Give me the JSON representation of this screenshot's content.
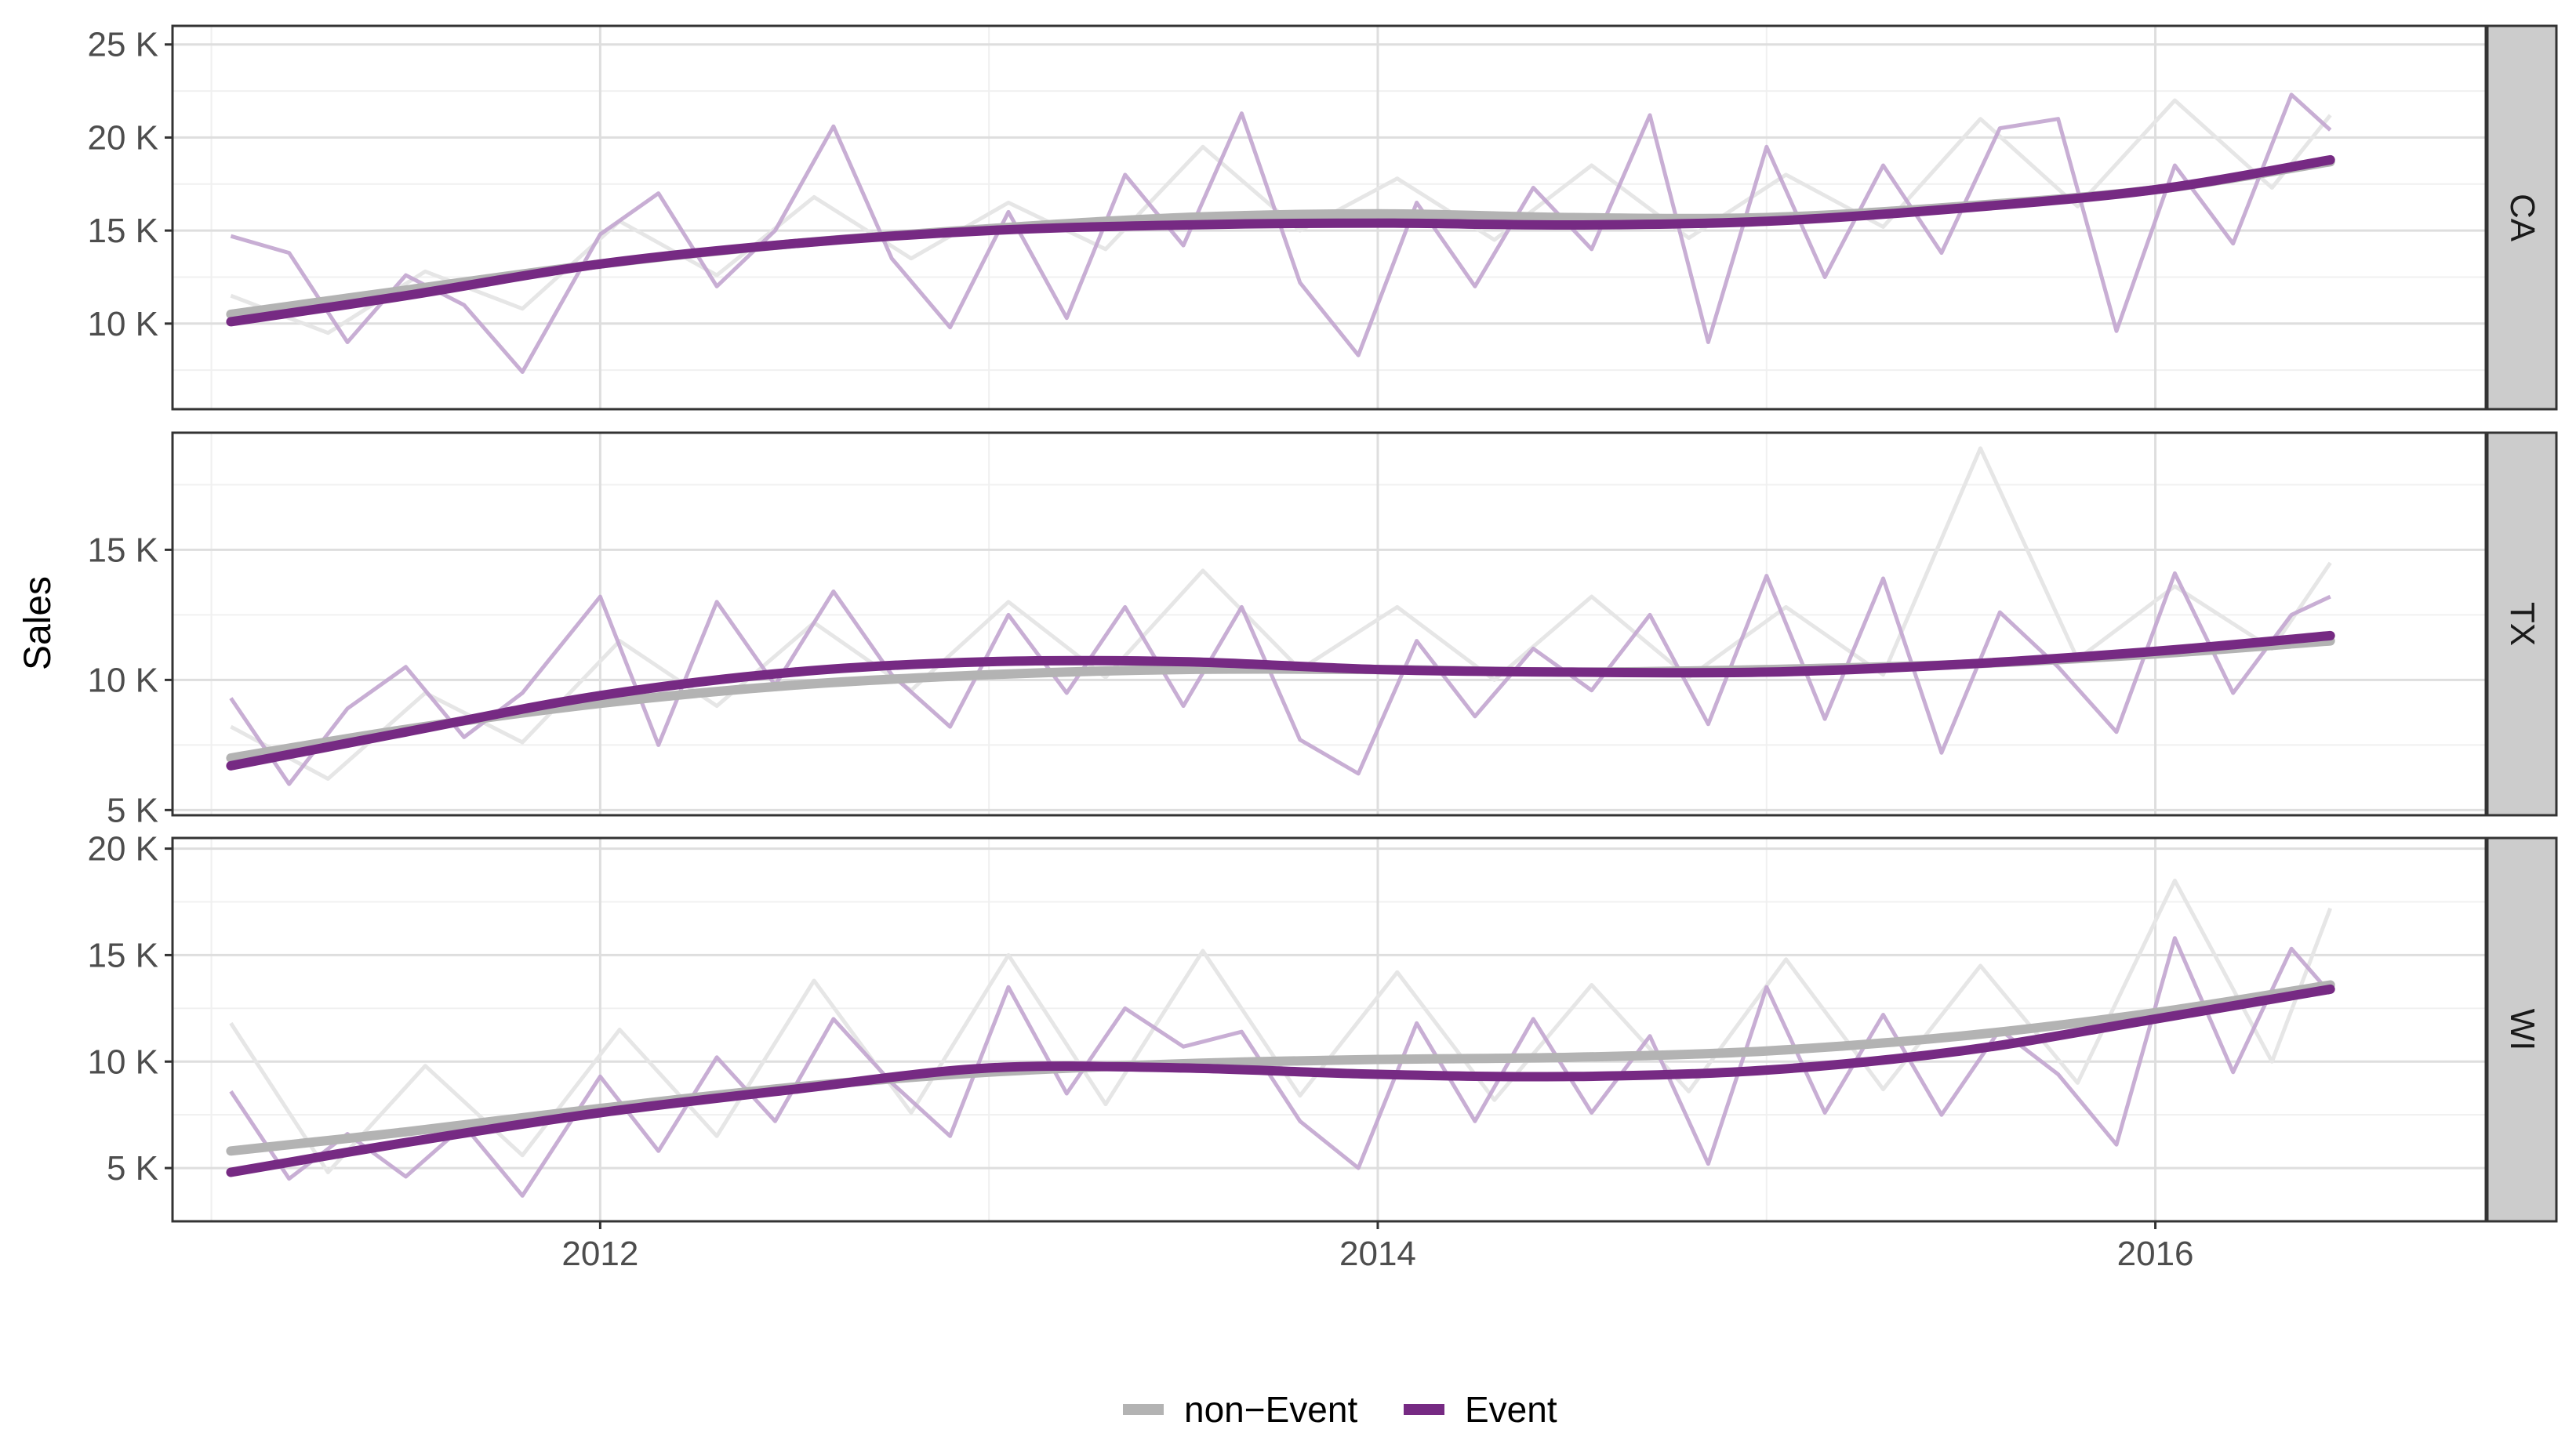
{
  "chart_data": {
    "type": "line",
    "ylabel": "Sales",
    "xlabel": "",
    "x_ticks": [
      "2012",
      "2014",
      "2016"
    ],
    "x_tick_values": [
      2012,
      2014,
      2016
    ],
    "xlim": [
      2010.9,
      2016.85
    ],
    "grid": true,
    "legend_position": "bottom",
    "colors": {
      "non_event": "#b3b3b3",
      "event": "#762a83",
      "raw_non_event": "#e6e6e6",
      "raw_event": "#c2a5cf"
    },
    "legend": [
      {
        "name": "non−Event",
        "color": "#b3b3b3"
      },
      {
        "name": "Event",
        "color": "#762a83"
      }
    ],
    "panels": [
      {
        "strip": "CA",
        "ylim": [
          5400,
          26000
        ],
        "y_ticks": [
          10000,
          15000,
          20000,
          25000
        ],
        "y_tick_labels": [
          "10 K",
          "15 K",
          "20 K",
          "25 K"
        ],
        "non_event_trend": {
          "x": [
            2011.05,
            2011.5,
            2012,
            2012.5,
            2013,
            2013.5,
            2014,
            2014.5,
            2015,
            2015.5,
            2016,
            2016.45
          ],
          "y": [
            10500,
            11800,
            13200,
            14300,
            15100,
            15700,
            15900,
            15700,
            15700,
            16300,
            17200,
            18700
          ]
        },
        "event_trend": {
          "x": [
            2011.05,
            2011.5,
            2012,
            2012.5,
            2013,
            2013.5,
            2014,
            2014.5,
            2015,
            2015.5,
            2016,
            2016.45
          ],
          "y": [
            10100,
            11500,
            13200,
            14300,
            15000,
            15300,
            15400,
            15300,
            15500,
            16200,
            17200,
            18800
          ]
        },
        "event_raw": {
          "x": [
            2011.05,
            2011.2,
            2011.35,
            2011.5,
            2011.65,
            2011.8,
            2012,
            2012.15,
            2012.3,
            2012.45,
            2012.6,
            2012.75,
            2012.9,
            2013.05,
            2013.2,
            2013.35,
            2013.5,
            2013.65,
            2013.8,
            2013.95,
            2014.1,
            2014.25,
            2014.4,
            2014.55,
            2014.7,
            2014.85,
            2015,
            2015.15,
            2015.3,
            2015.45,
            2015.6,
            2015.75,
            2015.9,
            2016.05,
            2016.2,
            2016.35,
            2016.45
          ],
          "y": [
            14700,
            13800,
            9000,
            12600,
            11000,
            7400,
            14800,
            17000,
            12000,
            15000,
            20600,
            13500,
            9800,
            16000,
            10300,
            18000,
            14200,
            21300,
            12200,
            8300,
            16500,
            12000,
            17300,
            14000,
            21200,
            9000,
            19500,
            12500,
            18500,
            13800,
            20500,
            21000,
            9600,
            18500,
            14300,
            22300,
            20400
          ]
        },
        "non_event_raw": {
          "x": [
            2011.05,
            2011.3,
            2011.55,
            2011.8,
            2012.05,
            2012.3,
            2012.55,
            2012.8,
            2013.05,
            2013.3,
            2013.55,
            2013.8,
            2014.05,
            2014.3,
            2014.55,
            2014.8,
            2015.05,
            2015.3,
            2015.55,
            2015.8,
            2016.05,
            2016.3,
            2016.45
          ],
          "y": [
            11500,
            9500,
            12800,
            10800,
            15500,
            12600,
            16800,
            13500,
            16500,
            14000,
            19500,
            15000,
            17800,
            14500,
            18500,
            14600,
            18000,
            15200,
            21000,
            16300,
            22000,
            17300,
            21200
          ]
        }
      },
      {
        "strip": "TX",
        "ylim": [
          4800,
          19500
        ],
        "y_ticks": [
          5000,
          10000,
          15000
        ],
        "y_tick_labels": [
          "5 K",
          "10 K",
          "15 K"
        ],
        "non_event_trend": {
          "x": [
            2011.05,
            2011.5,
            2012,
            2012.5,
            2013,
            2013.5,
            2014,
            2014.5,
            2015,
            2015.5,
            2016,
            2016.45
          ],
          "y": [
            7000,
            8100,
            9100,
            9800,
            10200,
            10400,
            10400,
            10300,
            10400,
            10600,
            11000,
            11500
          ]
        },
        "event_trend": {
          "x": [
            2011.05,
            2011.5,
            2012,
            2012.5,
            2013,
            2013.5,
            2014,
            2014.5,
            2015,
            2015.5,
            2016,
            2016.45
          ],
          "y": [
            6700,
            8000,
            9400,
            10300,
            10700,
            10700,
            10400,
            10300,
            10300,
            10600,
            11100,
            11700
          ]
        },
        "event_raw": {
          "x": [
            2011.05,
            2011.2,
            2011.35,
            2011.5,
            2011.65,
            2011.8,
            2012,
            2012.15,
            2012.3,
            2012.45,
            2012.6,
            2012.75,
            2012.9,
            2013.05,
            2013.2,
            2013.35,
            2013.5,
            2013.65,
            2013.8,
            2013.95,
            2014.1,
            2014.25,
            2014.4,
            2014.55,
            2014.7,
            2014.85,
            2015,
            2015.15,
            2015.3,
            2015.45,
            2015.6,
            2015.75,
            2015.9,
            2016.05,
            2016.2,
            2016.35,
            2016.45
          ],
          "y": [
            9300,
            6000,
            8900,
            10500,
            7800,
            9500,
            13200,
            7500,
            13000,
            9800,
            13400,
            10200,
            8200,
            12500,
            9500,
            12800,
            9000,
            12800,
            7700,
            6400,
            11500,
            8600,
            11200,
            9600,
            12500,
            8300,
            14000,
            8500,
            13900,
            7200,
            12600,
            10500,
            8000,
            14100,
            9500,
            12500,
            13200
          ]
        },
        "non_event_raw": {
          "x": [
            2011.05,
            2011.3,
            2011.55,
            2011.8,
            2012.05,
            2012.3,
            2012.55,
            2012.8,
            2013.05,
            2013.3,
            2013.55,
            2013.8,
            2014.05,
            2014.3,
            2014.55,
            2014.8,
            2015.05,
            2015.3,
            2015.55,
            2015.8,
            2016.05,
            2016.3,
            2016.45
          ],
          "y": [
            8200,
            6200,
            9500,
            7600,
            11500,
            9000,
            12200,
            9600,
            13000,
            10100,
            14200,
            10400,
            12800,
            10000,
            13200,
            10100,
            12800,
            10200,
            18900,
            10800,
            13600,
            11200,
            14500
          ]
        }
      },
      {
        "strip": "WI",
        "ylim": [
          2500,
          20500
        ],
        "y_ticks": [
          5000,
          10000,
          15000,
          20000
        ],
        "y_tick_labels": [
          "5 K",
          "10 K",
          "15 K",
          "20 K"
        ],
        "non_event_trend": {
          "x": [
            2011.05,
            2011.5,
            2012,
            2012.5,
            2013,
            2013.5,
            2014,
            2014.5,
            2015,
            2015.5,
            2016,
            2016.45
          ],
          "y": [
            5800,
            6700,
            7800,
            8800,
            9500,
            9900,
            10100,
            10200,
            10500,
            11200,
            12300,
            13600
          ]
        },
        "event_trend": {
          "x": [
            2011.05,
            2011.5,
            2012,
            2012.5,
            2013,
            2013.5,
            2014,
            2014.5,
            2015,
            2015.5,
            2016,
            2016.45
          ],
          "y": [
            4800,
            6200,
            7600,
            8700,
            9700,
            9700,
            9400,
            9300,
            9600,
            10500,
            12000,
            13400
          ]
        },
        "event_raw": {
          "x": [
            2011.05,
            2011.2,
            2011.35,
            2011.5,
            2011.65,
            2011.8,
            2012,
            2012.15,
            2012.3,
            2012.45,
            2012.6,
            2012.75,
            2012.9,
            2013.05,
            2013.2,
            2013.35,
            2013.5,
            2013.65,
            2013.8,
            2013.95,
            2014.1,
            2014.25,
            2014.4,
            2014.55,
            2014.7,
            2014.85,
            2015,
            2015.15,
            2015.3,
            2015.45,
            2015.6,
            2015.75,
            2015.9,
            2016.05,
            2016.2,
            2016.35,
            2016.45
          ],
          "y": [
            8600,
            4500,
            6600,
            4600,
            7000,
            3700,
            9300,
            5800,
            10200,
            7200,
            12000,
            9000,
            6500,
            13500,
            8500,
            12500,
            10700,
            11400,
            7200,
            5000,
            11800,
            7200,
            12000,
            7600,
            11200,
            5200,
            13500,
            7600,
            12200,
            7500,
            11500,
            9400,
            6100,
            15800,
            9500,
            15300,
            13200
          ]
        },
        "non_event_raw": {
          "x": [
            2011.05,
            2011.3,
            2011.55,
            2011.8,
            2012.05,
            2012.3,
            2012.55,
            2012.8,
            2013.05,
            2013.3,
            2013.55,
            2013.8,
            2014.05,
            2014.3,
            2014.55,
            2014.8,
            2015.05,
            2015.3,
            2015.55,
            2015.8,
            2016.05,
            2016.3,
            2016.45
          ],
          "y": [
            11800,
            4800,
            9800,
            5600,
            11500,
            6500,
            13800,
            7600,
            15000,
            8000,
            15200,
            8400,
            14200,
            8200,
            13600,
            8600,
            14800,
            8700,
            14500,
            9000,
            18500,
            10000,
            17200
          ]
        }
      }
    ]
  }
}
